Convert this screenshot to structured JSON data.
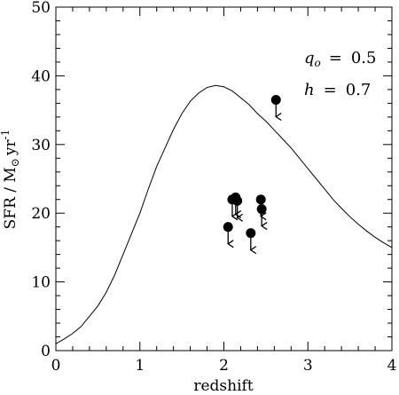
{
  "chart_data": {
    "type": "scatter",
    "title": "",
    "xlabel": "redshift",
    "ylabel_main": "SFR / M",
    "ylabel_sub": "⊙",
    "ylabel_unit": "yr",
    "ylabel_exp": "-1",
    "xlim": [
      0,
      4
    ],
    "ylim": [
      0,
      50
    ],
    "xticks": [
      0,
      1,
      2,
      3,
      4
    ],
    "yticks": [
      0,
      10,
      20,
      30,
      40,
      50
    ],
    "xtick_labels": [
      "0",
      "1",
      "2",
      "3",
      "4"
    ],
    "ytick_labels": [
      "0",
      "10",
      "20",
      "30",
      "40",
      "50"
    ],
    "x_minor_step": 0.2,
    "y_minor_step": 2,
    "grid": false,
    "annotations": [
      {
        "var": "q",
        "sub": "o",
        "eq": "=",
        "value": "0.5"
      },
      {
        "var": "h",
        "sub": "",
        "eq": "=",
        "value": "0.7"
      }
    ],
    "curve": {
      "name": "",
      "x": [
        0,
        0.1,
        0.2,
        0.3,
        0.4,
        0.5,
        0.6,
        0.7,
        0.8,
        0.9,
        1.0,
        1.1,
        1.2,
        1.3,
        1.4,
        1.5,
        1.6,
        1.7,
        1.8,
        1.9,
        2.0,
        2.1,
        2.2,
        2.3,
        2.4,
        2.5,
        2.6,
        2.7,
        2.8,
        2.9,
        3.0,
        3.1,
        3.2,
        3.3,
        3.4,
        3.5,
        3.6,
        3.7,
        3.8,
        3.9,
        4.0
      ],
      "y": [
        1.0,
        1.7,
        2.5,
        3.5,
        5.0,
        6.5,
        8.5,
        11.0,
        14.0,
        17.0,
        20.0,
        23.5,
        26.8,
        29.5,
        32.2,
        34.5,
        36.3,
        37.5,
        38.3,
        38.6,
        38.4,
        37.8,
        36.8,
        35.8,
        34.5,
        33.4,
        32.1,
        30.8,
        29.5,
        28.0,
        26.5,
        25.0,
        23.5,
        22.0,
        20.7,
        19.5,
        18.4,
        17.4,
        16.5,
        15.7,
        15.0
      ]
    },
    "points": [
      {
        "x": 2.62,
        "y": 36.5,
        "upper_limit": true
      },
      {
        "x": 2.05,
        "y": 18.0,
        "upper_limit": true
      },
      {
        "x": 2.1,
        "y": 22.0,
        "upper_limit": true
      },
      {
        "x": 2.14,
        "y": 22.3,
        "upper_limit": true
      },
      {
        "x": 2.16,
        "y": 21.8,
        "upper_limit": true
      },
      {
        "x": 2.32,
        "y": 17.1,
        "upper_limit": true
      },
      {
        "x": 2.44,
        "y": 22.0,
        "upper_limit": true
      },
      {
        "x": 2.45,
        "y": 20.6,
        "upper_limit": true
      }
    ]
  }
}
